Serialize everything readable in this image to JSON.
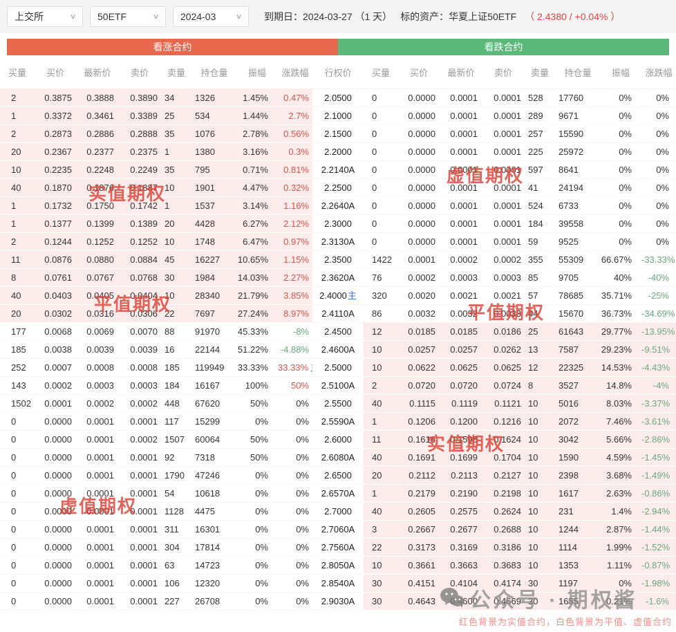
{
  "toolbar": {
    "exchange": "上交所",
    "underlying": "50ETF",
    "month": "2024-03",
    "expiry_label": "到期日：2024-03-27 （1 天）",
    "asset_label": "标的资产：华夏上证50ETF",
    "asset_quote": "（ 2.4380 / +0.04% ）",
    "accent_up": "#d9544a",
    "accent_down": "#68a87d"
  },
  "headers": {
    "call": "看涨合约",
    "put": "看跌合约",
    "strike": "行权价",
    "call_columns": [
      "买量",
      "买价",
      "最新价",
      "卖价",
      "卖量",
      "持仓量",
      "振幅",
      "涨跌幅"
    ],
    "put_columns": [
      "买量",
      "买价",
      "最新价",
      "卖价",
      "卖量",
      "持仓量",
      "振幅",
      "涨跌幅"
    ],
    "call_band_color": "#e8684e",
    "put_band_color": "#5ab878"
  },
  "watermarks": {
    "left": [
      "实值期权",
      "平值期权",
      "虚值期权"
    ],
    "right": [
      "虚值期权",
      "平值期权",
      "实值期权"
    ]
  },
  "footer": {
    "wechat_label": "公众号 · 期权酱",
    "wechat_icon": "wechat-icon",
    "note": "红色背景为实值合约，白色背景为平值、虚值合约"
  },
  "rows": [
    {
      "strike": "2.0500",
      "strike_main": false,
      "call_itm": true,
      "put_itm": false,
      "selected": true,
      "call": {
        "bv": "2",
        "bp": "0.3875",
        "lp": "0.3888",
        "ap": "0.3890",
        "av": "34",
        "oi": "1326",
        "amp": "1.45%",
        "chg": "0.47%",
        "dir": "up",
        "mark": ""
      },
      "put": {
        "bv": "0",
        "bp": "0.0000",
        "lp": "0.0001",
        "ap": "0.0001",
        "av": "528",
        "oi": "17760",
        "amp": "0%",
        "chg": "0%",
        "dir": "flat",
        "mark": ""
      }
    },
    {
      "strike": "2.1000",
      "strike_main": false,
      "call_itm": true,
      "put_itm": false,
      "selected": false,
      "call": {
        "bv": "1",
        "bp": "0.3372",
        "lp": "0.3461",
        "ap": "0.3389",
        "av": "25",
        "oi": "534",
        "amp": "1.44%",
        "chg": "2.7%",
        "dir": "up",
        "mark": ""
      },
      "put": {
        "bv": "0",
        "bp": "0.0000",
        "lp": "0.0001",
        "ap": "0.0001",
        "av": "289",
        "oi": "9671",
        "amp": "0%",
        "chg": "0%",
        "dir": "flat",
        "mark": ""
      }
    },
    {
      "strike": "2.1500",
      "strike_main": false,
      "call_itm": true,
      "put_itm": false,
      "selected": false,
      "call": {
        "bv": "2",
        "bp": "0.2873",
        "lp": "0.2886",
        "ap": "0.2888",
        "av": "35",
        "oi": "1076",
        "amp": "2.78%",
        "chg": "0.56%",
        "dir": "up",
        "mark": ""
      },
      "put": {
        "bv": "0",
        "bp": "0.0000",
        "lp": "0.0001",
        "ap": "0.0001",
        "av": "257",
        "oi": "15590",
        "amp": "0%",
        "chg": "0%",
        "dir": "flat",
        "mark": ""
      }
    },
    {
      "strike": "2.2000",
      "strike_main": false,
      "call_itm": true,
      "put_itm": false,
      "selected": false,
      "call": {
        "bv": "20",
        "bp": "0.2367",
        "lp": "0.2377",
        "ap": "0.2375",
        "av": "1",
        "oi": "1380",
        "amp": "3.16%",
        "chg": "0.3%",
        "dir": "up",
        "mark": ""
      },
      "put": {
        "bv": "0",
        "bp": "0.0000",
        "lp": "0.0001",
        "ap": "0.0001",
        "av": "225",
        "oi": "25972",
        "amp": "0%",
        "chg": "0%",
        "dir": "flat",
        "mark": ""
      }
    },
    {
      "strike": "2.2140A",
      "strike_main": false,
      "call_itm": true,
      "put_itm": false,
      "selected": false,
      "call": {
        "bv": "10",
        "bp": "0.2235",
        "lp": "0.2248",
        "ap": "0.2249",
        "av": "35",
        "oi": "795",
        "amp": "0.71%",
        "chg": "0.81%",
        "dir": "up",
        "mark": ""
      },
      "put": {
        "bv": "0",
        "bp": "0.0000",
        "lp": "0.0001",
        "ap": "0.0001",
        "av": "597",
        "oi": "8641",
        "amp": "0%",
        "chg": "0%",
        "dir": "flat",
        "mark": ""
      }
    },
    {
      "strike": "2.2500",
      "strike_main": false,
      "call_itm": true,
      "put_itm": false,
      "selected": false,
      "call": {
        "bv": "40",
        "bp": "0.1870",
        "lp": "0.1876",
        "ap": "0.1887",
        "av": "10",
        "oi": "1901",
        "amp": "4.47%",
        "chg": "0.32%",
        "dir": "up",
        "mark": ""
      },
      "put": {
        "bv": "0",
        "bp": "0.0000",
        "lp": "0.0001",
        "ap": "0.0001",
        "av": "41",
        "oi": "24194",
        "amp": "0%",
        "chg": "0%",
        "dir": "flat",
        "mark": ""
      }
    },
    {
      "strike": "2.2640A",
      "strike_main": false,
      "call_itm": true,
      "put_itm": false,
      "selected": false,
      "call": {
        "bv": "1",
        "bp": "0.1732",
        "lp": "0.1750",
        "ap": "0.1742",
        "av": "1",
        "oi": "1537",
        "amp": "3.14%",
        "chg": "1.16%",
        "dir": "up",
        "mark": ""
      },
      "put": {
        "bv": "0",
        "bp": "0.0000",
        "lp": "0.0001",
        "ap": "0.0001",
        "av": "524",
        "oi": "6733",
        "amp": "0%",
        "chg": "0%",
        "dir": "flat",
        "mark": ""
      }
    },
    {
      "strike": "2.3000",
      "strike_main": false,
      "call_itm": true,
      "put_itm": false,
      "selected": false,
      "call": {
        "bv": "1",
        "bp": "0.1377",
        "lp": "0.1399",
        "ap": "0.1389",
        "av": "20",
        "oi": "4428",
        "amp": "6.27%",
        "chg": "2.12%",
        "dir": "up",
        "mark": ""
      },
      "put": {
        "bv": "0",
        "bp": "0.0000",
        "lp": "0.0001",
        "ap": "0.0001",
        "av": "184",
        "oi": "39558",
        "amp": "0%",
        "chg": "0%",
        "dir": "flat",
        "mark": ""
      }
    },
    {
      "strike": "2.3130A",
      "strike_main": false,
      "call_itm": true,
      "put_itm": false,
      "selected": false,
      "call": {
        "bv": "2",
        "bp": "0.1244",
        "lp": "0.1252",
        "ap": "0.1252",
        "av": "10",
        "oi": "1748",
        "amp": "6.47%",
        "chg": "0.97%",
        "dir": "up",
        "mark": ""
      },
      "put": {
        "bv": "0",
        "bp": "0.0000",
        "lp": "0.0001",
        "ap": "0.0001",
        "av": "59",
        "oi": "9525",
        "amp": "0%",
        "chg": "0%",
        "dir": "flat",
        "mark": ""
      }
    },
    {
      "strike": "2.3500",
      "strike_main": false,
      "call_itm": true,
      "put_itm": false,
      "selected": false,
      "call": {
        "bv": "11",
        "bp": "0.0876",
        "lp": "0.0880",
        "ap": "0.0884",
        "av": "45",
        "oi": "16227",
        "amp": "10.65%",
        "chg": "1.15%",
        "dir": "up",
        "mark": ""
      },
      "put": {
        "bv": "1422",
        "bp": "0.0001",
        "lp": "0.0002",
        "ap": "0.0002",
        "av": "355",
        "oi": "55309",
        "amp": "66.67%",
        "chg": "-33.33%",
        "dir": "down",
        "mark": ""
      }
    },
    {
      "strike": "2.3620A",
      "strike_main": false,
      "call_itm": true,
      "put_itm": false,
      "selected": false,
      "call": {
        "bv": "8",
        "bp": "0.0761",
        "lp": "0.0767",
        "ap": "0.0768",
        "av": "30",
        "oi": "1984",
        "amp": "14.03%",
        "chg": "2.27%",
        "dir": "up",
        "mark": ""
      },
      "put": {
        "bv": "76",
        "bp": "0.0002",
        "lp": "0.0003",
        "ap": "0.0003",
        "av": "85",
        "oi": "9705",
        "amp": "40%",
        "chg": "-40%",
        "dir": "down",
        "mark": ""
      }
    },
    {
      "strike": "2.4000",
      "strike_main": true,
      "call_itm": true,
      "put_itm": false,
      "selected": false,
      "call": {
        "bv": "40",
        "bp": "0.0403",
        "lp": "0.0405",
        "ap": "0.0404",
        "av": "10",
        "oi": "28340",
        "amp": "21.79%",
        "chg": "3.85%",
        "dir": "up",
        "mark": ""
      },
      "put": {
        "bv": "320",
        "bp": "0.0020",
        "lp": "0.0021",
        "ap": "0.0021",
        "av": "57",
        "oi": "78685",
        "amp": "35.71%",
        "chg": "-25%",
        "dir": "down",
        "mark": ""
      }
    },
    {
      "strike": "2.4110A",
      "strike_main": false,
      "call_itm": true,
      "put_itm": false,
      "selected": false,
      "call": {
        "bv": "20",
        "bp": "0.0302",
        "lp": "0.0316",
        "ap": "0.0306",
        "av": "22",
        "oi": "7697",
        "amp": "27.24%",
        "chg": "8.97%",
        "dir": "up",
        "mark": ""
      },
      "put": {
        "bv": "86",
        "bp": "0.0032",
        "lp": "0.0032",
        "ap": "0.0033",
        "av": "44",
        "oi": "15670",
        "amp": "36.73%",
        "chg": "-34.69%",
        "dir": "down",
        "mark": ""
      }
    },
    {
      "strike": "2.4500",
      "strike_main": false,
      "call_itm": false,
      "put_itm": true,
      "selected": false,
      "call": {
        "bv": "177",
        "bp": "0.0068",
        "lp": "0.0069",
        "ap": "0.0070",
        "av": "88",
        "oi": "91970",
        "amp": "45.33%",
        "chg": "-8%",
        "dir": "down",
        "mark": ""
      },
      "put": {
        "bv": "12",
        "bp": "0.0185",
        "lp": "0.0185",
        "ap": "0.0186",
        "av": "25",
        "oi": "61643",
        "amp": "29.77%",
        "chg": "-13.95%",
        "dir": "down",
        "mark": ""
      }
    },
    {
      "strike": "2.4600A",
      "strike_main": false,
      "call_itm": false,
      "put_itm": true,
      "selected": false,
      "call": {
        "bv": "185",
        "bp": "0.0038",
        "lp": "0.0039",
        "ap": "0.0039",
        "av": "16",
        "oi": "22144",
        "amp": "51.22%",
        "chg": "-4.88%",
        "dir": "down",
        "mark": ""
      },
      "put": {
        "bv": "10",
        "bp": "0.0257",
        "lp": "0.0257",
        "ap": "0.0262",
        "av": "13",
        "oi": "7587",
        "amp": "29.23%",
        "chg": "-9.51%",
        "dir": "down",
        "mark": ""
      }
    },
    {
      "strike": "2.5000",
      "strike_main": false,
      "call_itm": false,
      "put_itm": true,
      "selected": false,
      "call": {
        "bv": "252",
        "bp": "0.0007",
        "lp": "0.0008",
        "ap": "0.0008",
        "av": "185",
        "oi": "119949",
        "amp": "33.33%",
        "chg": "33.33%",
        "dir": "up",
        "mark": "主"
      },
      "put": {
        "bv": "10",
        "bp": "0.0622",
        "lp": "0.0625",
        "ap": "0.0625",
        "av": "12",
        "oi": "22325",
        "amp": "14.53%",
        "chg": "-4.43%",
        "dir": "down",
        "mark": ""
      }
    },
    {
      "strike": "2.5100A",
      "strike_main": false,
      "call_itm": false,
      "put_itm": true,
      "selected": false,
      "call": {
        "bv": "143",
        "bp": "0.0002",
        "lp": "0.0003",
        "ap": "0.0003",
        "av": "184",
        "oi": "16167",
        "amp": "100%",
        "chg": "50%",
        "dir": "up",
        "mark": ""
      },
      "put": {
        "bv": "2",
        "bp": "0.0720",
        "lp": "0.0720",
        "ap": "0.0724",
        "av": "8",
        "oi": "3527",
        "amp": "14.8%",
        "chg": "-4%",
        "dir": "down",
        "mark": ""
      }
    },
    {
      "strike": "2.5500",
      "strike_main": false,
      "call_itm": false,
      "put_itm": true,
      "selected": false,
      "call": {
        "bv": "1502",
        "bp": "0.0001",
        "lp": "0.0002",
        "ap": "0.0002",
        "av": "448",
        "oi": "67620",
        "amp": "50%",
        "chg": "0%",
        "dir": "flat",
        "mark": ""
      },
      "put": {
        "bv": "40",
        "bp": "0.1115",
        "lp": "0.1119",
        "ap": "0.1121",
        "av": "10",
        "oi": "5016",
        "amp": "8.03%",
        "chg": "-3.37%",
        "dir": "down",
        "mark": ""
      }
    },
    {
      "strike": "2.5590A",
      "strike_main": false,
      "call_itm": false,
      "put_itm": true,
      "selected": false,
      "call": {
        "bv": "0",
        "bp": "0.0000",
        "lp": "0.0001",
        "ap": "0.0001",
        "av": "117",
        "oi": "15299",
        "amp": "0%",
        "chg": "0%",
        "dir": "flat",
        "mark": ""
      },
      "put": {
        "bv": "1",
        "bp": "0.1206",
        "lp": "0.1200",
        "ap": "0.1216",
        "av": "10",
        "oi": "2072",
        "amp": "7.46%",
        "chg": "-3.61%",
        "dir": "down",
        "mark": ""
      }
    },
    {
      "strike": "2.6000",
      "strike_main": false,
      "call_itm": false,
      "put_itm": true,
      "selected": false,
      "call": {
        "bv": "0",
        "bp": "0.0000",
        "lp": "0.0001",
        "ap": "0.0002",
        "av": "1507",
        "oi": "60064",
        "amp": "50%",
        "chg": "0%",
        "dir": "flat",
        "mark": ""
      },
      "put": {
        "bv": "11",
        "bp": "0.1616",
        "lp": "0.1598",
        "ap": "0.1624",
        "av": "10",
        "oi": "3042",
        "amp": "5.66%",
        "chg": "-2.86%",
        "dir": "down",
        "mark": ""
      }
    },
    {
      "strike": "2.6080A",
      "strike_main": false,
      "call_itm": false,
      "put_itm": true,
      "selected": false,
      "call": {
        "bv": "0",
        "bp": "0.0000",
        "lp": "0.0001",
        "ap": "0.0001",
        "av": "92",
        "oi": "7318",
        "amp": "50%",
        "chg": "0%",
        "dir": "flat",
        "mark": ""
      },
      "put": {
        "bv": "40",
        "bp": "0.1691",
        "lp": "0.1699",
        "ap": "0.1704",
        "av": "10",
        "oi": "1590",
        "amp": "4.59%",
        "chg": "-1.45%",
        "dir": "down",
        "mark": ""
      }
    },
    {
      "strike": "2.6500",
      "strike_main": false,
      "call_itm": false,
      "put_itm": true,
      "selected": false,
      "call": {
        "bv": "0",
        "bp": "0.0000",
        "lp": "0.0001",
        "ap": "0.0001",
        "av": "1790",
        "oi": "47246",
        "amp": "0%",
        "chg": "0%",
        "dir": "flat",
        "mark": ""
      },
      "put": {
        "bv": "20",
        "bp": "0.2112",
        "lp": "0.2113",
        "ap": "0.2127",
        "av": "10",
        "oi": "2398",
        "amp": "3.68%",
        "chg": "-1.49%",
        "dir": "down",
        "mark": ""
      }
    },
    {
      "strike": "2.6570A",
      "strike_main": false,
      "call_itm": false,
      "put_itm": true,
      "selected": false,
      "call": {
        "bv": "0",
        "bp": "0.0000",
        "lp": "0.0001",
        "ap": "0.0001",
        "av": "54",
        "oi": "10618",
        "amp": "0%",
        "chg": "0%",
        "dir": "flat",
        "mark": ""
      },
      "put": {
        "bv": "1",
        "bp": "0.2179",
        "lp": "0.2190",
        "ap": "0.2198",
        "av": "10",
        "oi": "1617",
        "amp": "2.63%",
        "chg": "-0.86%",
        "dir": "down",
        "mark": ""
      }
    },
    {
      "strike": "2.7000",
      "strike_main": false,
      "call_itm": false,
      "put_itm": true,
      "selected": false,
      "call": {
        "bv": "0",
        "bp": "0.0000",
        "lp": "0.0001",
        "ap": "0.0001",
        "av": "1128",
        "oi": "4475",
        "amp": "0%",
        "chg": "0%",
        "dir": "flat",
        "mark": ""
      },
      "put": {
        "bv": "40",
        "bp": "0.2605",
        "lp": "0.2575",
        "ap": "0.2624",
        "av": "10",
        "oi": "231",
        "amp": "1.4%",
        "chg": "-2.94%",
        "dir": "down",
        "mark": ""
      }
    },
    {
      "strike": "2.7060A",
      "strike_main": false,
      "call_itm": false,
      "put_itm": true,
      "selected": false,
      "call": {
        "bv": "0",
        "bp": "0.0000",
        "lp": "0.0001",
        "ap": "0.0001",
        "av": "311",
        "oi": "16301",
        "amp": "0%",
        "chg": "0%",
        "dir": "flat",
        "mark": ""
      },
      "put": {
        "bv": "3",
        "bp": "0.2667",
        "lp": "0.2677",
        "ap": "0.2688",
        "av": "10",
        "oi": "1244",
        "amp": "2.87%",
        "chg": "-1.44%",
        "dir": "down",
        "mark": ""
      }
    },
    {
      "strike": "2.7560A",
      "strike_main": false,
      "call_itm": false,
      "put_itm": true,
      "selected": false,
      "call": {
        "bv": "0",
        "bp": "0.0000",
        "lp": "0.0001",
        "ap": "0.0001",
        "av": "304",
        "oi": "17814",
        "amp": "0%",
        "chg": "0%",
        "dir": "flat",
        "mark": ""
      },
      "put": {
        "bv": "22",
        "bp": "0.3173",
        "lp": "0.3169",
        "ap": "0.3186",
        "av": "10",
        "oi": "1114",
        "amp": "1.99%",
        "chg": "-1.52%",
        "dir": "down",
        "mark": ""
      }
    },
    {
      "strike": "2.8050A",
      "strike_main": false,
      "call_itm": false,
      "put_itm": true,
      "selected": false,
      "call": {
        "bv": "0",
        "bp": "0.0000",
        "lp": "0.0001",
        "ap": "0.0001",
        "av": "63",
        "oi": "14723",
        "amp": "0%",
        "chg": "0%",
        "dir": "flat",
        "mark": ""
      },
      "put": {
        "bv": "10",
        "bp": "0.3661",
        "lp": "0.3663",
        "ap": "0.3683",
        "av": "10",
        "oi": "1353",
        "amp": "1.11%",
        "chg": "-0.87%",
        "dir": "down",
        "mark": ""
      }
    },
    {
      "strike": "2.8540A",
      "strike_main": false,
      "call_itm": false,
      "put_itm": true,
      "selected": false,
      "call": {
        "bv": "0",
        "bp": "0.0000",
        "lp": "0.0001",
        "ap": "0.0001",
        "av": "106",
        "oi": "12320",
        "amp": "0%",
        "chg": "0%",
        "dir": "flat",
        "mark": ""
      },
      "put": {
        "bv": "30",
        "bp": "0.4151",
        "lp": "0.4104",
        "ap": "0.4174",
        "av": "30",
        "oi": "1197",
        "amp": "0%",
        "chg": "-1.98%",
        "dir": "down",
        "mark": ""
      }
    },
    {
      "strike": "2.9030A",
      "strike_main": false,
      "call_itm": false,
      "put_itm": true,
      "selected": false,
      "call": {
        "bv": "0",
        "bp": "0.0000",
        "lp": "0.0001",
        "ap": "0.0001",
        "av": "227",
        "oi": "26708",
        "amp": "0%",
        "chg": "0%",
        "dir": "flat",
        "mark": ""
      },
      "put": {
        "bv": "30",
        "bp": "0.4643",
        "lp": "0.4600",
        "ap": "0.4669",
        "av": "30",
        "oi": "1655",
        "amp": "0.21%",
        "chg": "-1.6%",
        "dir": "down",
        "mark": ""
      }
    }
  ]
}
